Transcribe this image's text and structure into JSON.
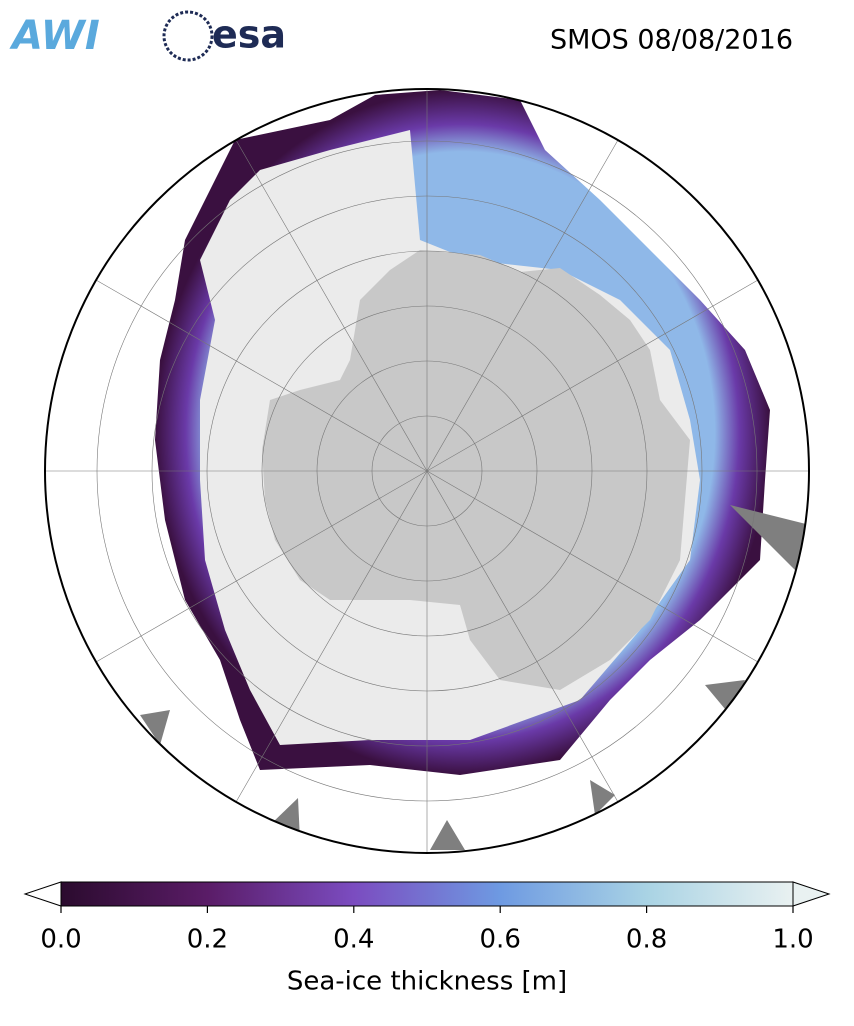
{
  "header": {
    "logo_left": "AWI",
    "logo_right": "esa",
    "title": "SMOS 08/08/2016"
  },
  "colorbar": {
    "label": "Sea-ice thickness [m]",
    "lim": [
      0,
      1
    ],
    "ticks": [
      {
        "value": 0,
        "label": "0.0"
      },
      {
        "value": 0.2,
        "label": "0.2"
      },
      {
        "value": 0.4,
        "label": "0.4"
      },
      {
        "value": 0.6,
        "label": "0.6"
      },
      {
        "value": 0.8,
        "label": "0.8"
      },
      {
        "value": 1,
        "label": "1.0"
      }
    ],
    "colors": [
      "#2b0b2e",
      "#5a1c67",
      "#7b4cc0",
      "#6e9ae2",
      "#a9d3e4",
      "#e9f1f1"
    ]
  }
}
